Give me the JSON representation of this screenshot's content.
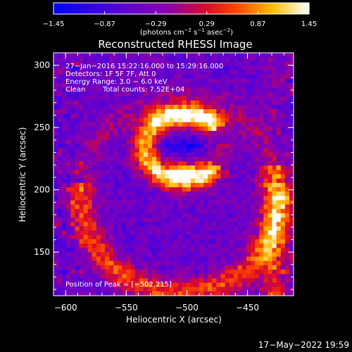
{
  "chart_data": {
    "type": "heatmap",
    "title": "Reconstructed RHESSI Image",
    "xlabel": "Heliocentric X (arcsec)",
    "ylabel": "Heliocentric Y (arcsec)",
    "xlim": [
      -610,
      -412
    ],
    "ylim": [
      115,
      310
    ],
    "xticks": [
      "−600",
      "−550",
      "−500",
      "−450"
    ],
    "xtick_values": [
      -600,
      -550,
      -500,
      -450
    ],
    "yticks": [
      "150",
      "200",
      "250",
      "300"
    ],
    "ytick_values": [
      150,
      200,
      250,
      300
    ],
    "colorbar": {
      "ticks": [
        "−1.45",
        "−0.87",
        "−0.29",
        "0.29",
        "0.87",
        "1.45"
      ],
      "tick_values": [
        -1.45,
        -0.87,
        -0.29,
        0.29,
        0.87,
        1.45
      ],
      "range": [
        -1.45,
        1.45
      ],
      "unit_main": "(photons cm",
      "unit_sup1": "−2",
      "unit_mid": " s",
      "unit_sup2": "−1",
      "unit_mid2": " asec",
      "unit_sup3": "−2",
      "unit_end": ")"
    },
    "annotations": {
      "line1": "27−Jan−2016 15:22:16.000 to 15:29:16.000",
      "line2": "Detectors: 1F 5F 7F, Att 0",
      "line3": "Energy Range: 3.0 − 6.0 keV",
      "line4a": "Clean",
      "line4b": "Total counts: 7.52E+04",
      "peak": "Position of Peak = [−502,215]"
    },
    "peak": [
      -502,
      215
    ],
    "date_stamp": "17−May−2022 19:59"
  }
}
